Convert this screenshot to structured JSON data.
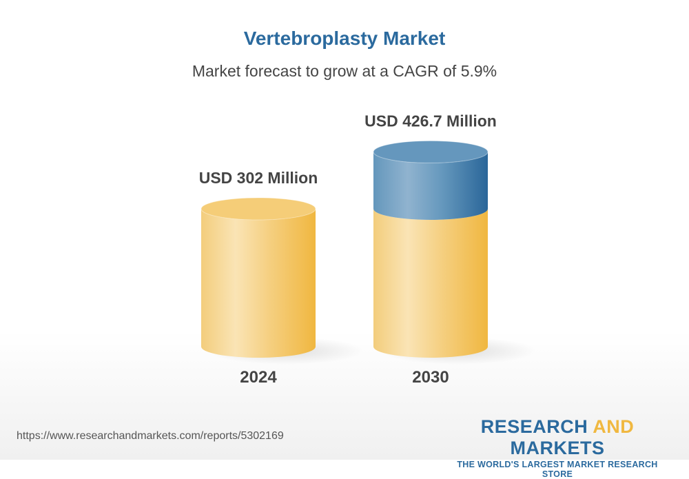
{
  "chart_data": {
    "type": "bar",
    "title": "Vertebroplasty Market",
    "subtitle": "Market forecast to grow at a CAGR of 5.9%",
    "categories": [
      "2024",
      "2030"
    ],
    "values": [
      302,
      426.7
    ],
    "data_labels": [
      "USD 302 Million",
      "USD 426.7 Million"
    ],
    "unit": "USD Million",
    "style": "3d-cylinder",
    "colors": {
      "base": "#f3c55e",
      "growth": "#2b6a9e",
      "title": "#2b6a9e"
    }
  },
  "footer": {
    "url": "https://www.researchandmarkets.com/reports/5302169",
    "logo_line1_a": "RESEARCH ",
    "logo_line1_b": "AND",
    "logo_line1_c": " MARKETS",
    "logo_line2": "THE WORLD'S LARGEST MARKET RESEARCH STORE"
  }
}
